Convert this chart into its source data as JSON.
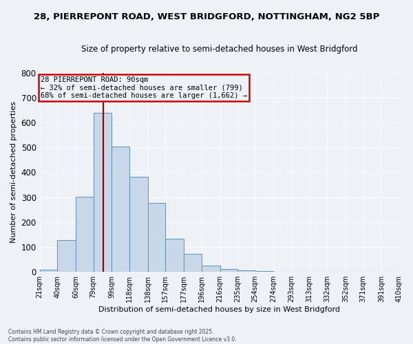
{
  "title1": "28, PIERREPONT ROAD, WEST BRIDGFORD, NOTTINGHAM, NG2 5BP",
  "title2": "Size of property relative to semi-detached houses in West Bridgford",
  "xlabel": "Distribution of semi-detached houses by size in West Bridgford",
  "ylabel": "Number of semi-detached properties",
  "footnote1": "Contains HM Land Registry data © Crown copyright and database right 2025.",
  "footnote2": "Contains public sector information licensed under the Open Government Licence v3.0.",
  "bin_labels": [
    "21sqm",
    "40sqm",
    "60sqm",
    "79sqm",
    "99sqm",
    "118sqm",
    "138sqm",
    "157sqm",
    "177sqm",
    "196sqm",
    "216sqm",
    "235sqm",
    "254sqm",
    "274sqm",
    "293sqm",
    "313sqm",
    "332sqm",
    "352sqm",
    "371sqm",
    "391sqm",
    "410sqm"
  ],
  "bin_edges": [
    21,
    40,
    60,
    79,
    99,
    118,
    138,
    157,
    177,
    196,
    216,
    235,
    254,
    274,
    293,
    313,
    332,
    352,
    371,
    391,
    410
  ],
  "bar_heights": [
    10,
    128,
    303,
    638,
    502,
    383,
    278,
    133,
    73,
    25,
    12,
    5,
    3,
    0,
    0,
    0,
    0,
    0,
    0,
    0
  ],
  "bar_facecolor": "#c8d8e8",
  "bar_edgecolor": "#6699bb",
  "property_size": 90,
  "vline_color": "#990000",
  "vline_x": 90,
  "annotation_title": "28 PIERREPONT ROAD: 90sqm",
  "annotation_line1": "← 32% of semi-detached houses are smaller (799)",
  "annotation_line2": "68% of semi-detached houses are larger (1,662) →",
  "annotation_box_color": "#cc0000",
  "ylim": [
    0,
    800
  ],
  "yticks": [
    0,
    100,
    200,
    300,
    400,
    500,
    600,
    700,
    800
  ],
  "background_color": "#eef2f7",
  "grid_color": "#ffffff"
}
